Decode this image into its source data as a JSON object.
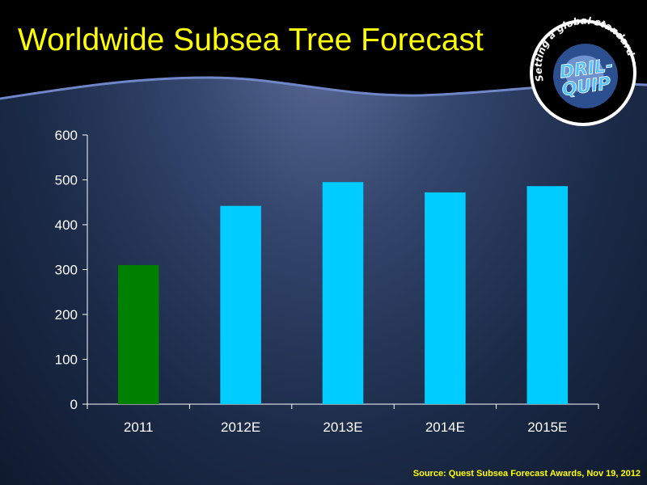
{
  "slide": {
    "title": "Worldwide Subsea Tree Forecast",
    "source": "Source: Quest Subsea Forecast Awards, Nov 19, 2012"
  },
  "logo": {
    "tagline": "Setting a global standard",
    "brand_line1": "DRIL-",
    "brand_line2": "QUIP",
    "icon": "globe-logo-icon"
  },
  "colors": {
    "title": "#ffff00",
    "bar_actual": "#008000",
    "bar_forecast": "#00ccff",
    "axis_text": "#ffffff",
    "source_text": "#ffff00"
  },
  "chart_data": {
    "type": "bar",
    "categories": [
      "2011",
      "2012E",
      "2013E",
      "2014E",
      "2015E"
    ],
    "values": [
      310,
      442,
      495,
      472,
      486
    ],
    "bar_colors": [
      "#008000",
      "#00ccff",
      "#00ccff",
      "#00ccff",
      "#00ccff"
    ],
    "ylim": [
      0,
      600
    ],
    "yticks": [
      0,
      100,
      200,
      300,
      400,
      500,
      600
    ],
    "grid": false
  }
}
